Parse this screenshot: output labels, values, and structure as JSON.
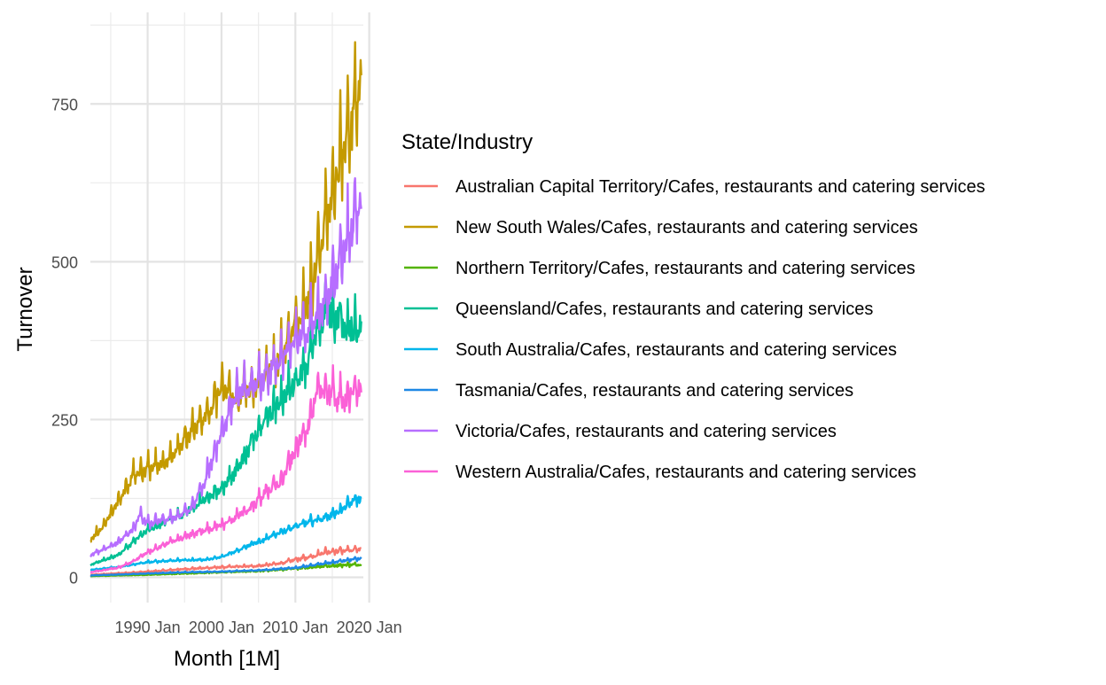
{
  "chart_data": {
    "type": "line",
    "xlabel": "Month [1M]",
    "ylabel": "Turnover",
    "xlim": [
      1982.25,
      2019.2
    ],
    "ylim": [
      -40,
      895
    ],
    "x_ticks": [
      {
        "value": 1990,
        "label": "1990 Jan"
      },
      {
        "value": 2000,
        "label": "2000 Jan"
      },
      {
        "value": 2010,
        "label": "2010 Jan"
      },
      {
        "value": 2020,
        "label": "2020 Jan"
      }
    ],
    "y_ticks": [
      0,
      250,
      500,
      750
    ],
    "grid": true,
    "legend_position": "right",
    "legend_title": "State/Industry",
    "x_start": 1982.25,
    "x_end": 2018.92,
    "series": [
      {
        "name": "Australian Capital Territory/Cafes, restaurants and catering services",
        "color": "#F8766D",
        "anchors": [
          [
            1982.25,
            4
          ],
          [
            1990,
            9
          ],
          [
            1995,
            13
          ],
          [
            2000,
            16
          ],
          [
            2005,
            18
          ],
          [
            2008,
            22
          ],
          [
            2010,
            28
          ],
          [
            2012,
            32
          ],
          [
            2014,
            40
          ],
          [
            2016,
            42
          ],
          [
            2018.92,
            44
          ]
        ],
        "amp": 0.1,
        "noise": 0.06
      },
      {
        "name": "New South Wales/Cafes, restaurants and catering services",
        "color": "#C49A00",
        "anchors": [
          [
            1982.25,
            60
          ],
          [
            1984,
            80
          ],
          [
            1986,
            120
          ],
          [
            1988,
            160
          ],
          [
            1990,
            172
          ],
          [
            1992,
            178
          ],
          [
            1994,
            200
          ],
          [
            1996,
            230
          ],
          [
            1998,
            255
          ],
          [
            2000,
            300
          ],
          [
            2002,
            280
          ],
          [
            2004,
            300
          ],
          [
            2006,
            320
          ],
          [
            2008,
            350
          ],
          [
            2010,
            400
          ],
          [
            2012,
            450
          ],
          [
            2014,
            560
          ],
          [
            2016,
            650
          ],
          [
            2018,
            740
          ],
          [
            2018.92,
            810
          ]
        ],
        "amp": 0.09,
        "noise": 0.04
      },
      {
        "name": "Northern Territory/Cafes, restaurants and catering services",
        "color": "#53B400",
        "anchors": [
          [
            1982.25,
            2
          ],
          [
            1990,
            4
          ],
          [
            2000,
            8
          ],
          [
            2005,
            10
          ],
          [
            2010,
            14
          ],
          [
            2014,
            18
          ],
          [
            2018.92,
            20
          ]
        ],
        "amp": 0.1,
        "noise": 0.08
      },
      {
        "name": "Queensland/Cafes, restaurants and catering services",
        "color": "#00C094",
        "anchors": [
          [
            1982.25,
            20
          ],
          [
            1986,
            35
          ],
          [
            1988,
            55
          ],
          [
            1990,
            75
          ],
          [
            1992,
            85
          ],
          [
            1994,
            95
          ],
          [
            1996,
            110
          ],
          [
            1998,
            125
          ],
          [
            2000,
            140
          ],
          [
            2002,
            170
          ],
          [
            2004,
            210
          ],
          [
            2006,
            250
          ],
          [
            2008,
            280
          ],
          [
            2010,
            310
          ],
          [
            2012,
            350
          ],
          [
            2014,
            420
          ],
          [
            2016,
            410
          ],
          [
            2017,
            390
          ],
          [
            2018.92,
            400
          ]
        ],
        "amp": 0.07,
        "noise": 0.05
      },
      {
        "name": "South Australia/Cafes, restaurants and catering services",
        "color": "#00B6EB",
        "anchors": [
          [
            1982.25,
            12
          ],
          [
            1986,
            16
          ],
          [
            1988,
            20
          ],
          [
            1990,
            24
          ],
          [
            1994,
            27
          ],
          [
            1998,
            28
          ],
          [
            2000,
            32
          ],
          [
            2002,
            42
          ],
          [
            2004,
            52
          ],
          [
            2006,
            60
          ],
          [
            2008,
            72
          ],
          [
            2010,
            80
          ],
          [
            2012,
            88
          ],
          [
            2014,
            94
          ],
          [
            2016,
            105
          ],
          [
            2018,
            122
          ],
          [
            2018.92,
            125
          ]
        ],
        "amp": 0.06,
        "noise": 0.04
      },
      {
        "name": "Tasmania/Cafes, restaurants and catering services",
        "color": "#1E88E5",
        "anchors": [
          [
            1982.25,
            3
          ],
          [
            1990,
            6
          ],
          [
            1995,
            8
          ],
          [
            2000,
            9
          ],
          [
            2005,
            11
          ],
          [
            2010,
            15
          ],
          [
            2014,
            22
          ],
          [
            2018.92,
            30
          ]
        ],
        "amp": 0.08,
        "noise": 0.05
      },
      {
        "name": "Victoria/Cafes, restaurants and catering services",
        "color": "#B76EFF",
        "anchors": [
          [
            1982.25,
            35
          ],
          [
            1986,
            55
          ],
          [
            1988,
            75
          ],
          [
            1989,
            98
          ],
          [
            1990,
            85
          ],
          [
            1992,
            90
          ],
          [
            1994,
            95
          ],
          [
            1996,
            110
          ],
          [
            1998,
            160
          ],
          [
            2000,
            230
          ],
          [
            2002,
            290
          ],
          [
            2004,
            300
          ],
          [
            2006,
            320
          ],
          [
            2008,
            345
          ],
          [
            2010,
            370
          ],
          [
            2012,
            400
          ],
          [
            2014,
            430
          ],
          [
            2016,
            500
          ],
          [
            2018,
            570
          ],
          [
            2018.92,
            600
          ]
        ],
        "amp": 0.08,
        "noise": 0.04
      },
      {
        "name": "Western Australia/Cafes, restaurants and catering services",
        "color": "#FB61D7",
        "anchors": [
          [
            1982.25,
            8
          ],
          [
            1986,
            15
          ],
          [
            1988,
            25
          ],
          [
            1990,
            40
          ],
          [
            1992,
            50
          ],
          [
            1994,
            60
          ],
          [
            1996,
            68
          ],
          [
            1998,
            75
          ],
          [
            2000,
            82
          ],
          [
            2002,
            95
          ],
          [
            2004,
            110
          ],
          [
            2006,
            135
          ],
          [
            2008,
            150
          ],
          [
            2010,
            200
          ],
          [
            2012,
            250
          ],
          [
            2013,
            290
          ],
          [
            2014,
            300
          ],
          [
            2016,
            280
          ],
          [
            2018,
            290
          ],
          [
            2018.92,
            305
          ]
        ],
        "amp": 0.07,
        "noise": 0.05
      }
    ]
  }
}
